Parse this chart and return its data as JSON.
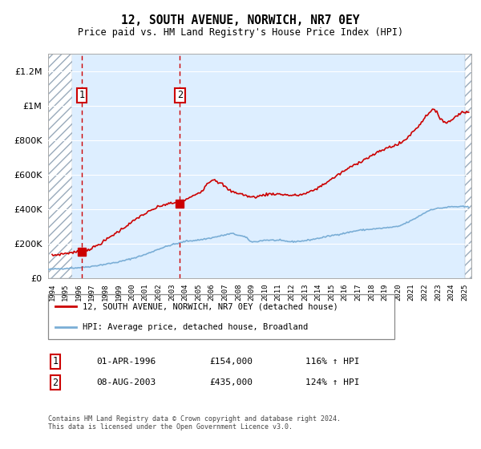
{
  "title": "12, SOUTH AVENUE, NORWICH, NR7 0EY",
  "subtitle": "Price paid vs. HM Land Registry's House Price Index (HPI)",
  "legend_line1": "12, SOUTH AVENUE, NORWICH, NR7 0EY (detached house)",
  "legend_line2": "HPI: Average price, detached house, Broadland",
  "transaction1_date": "01-APR-1996",
  "transaction1_price": "£154,000",
  "transaction1_hpi": "116% ↑ HPI",
  "transaction1_year": 1996.25,
  "transaction1_value": 154000,
  "transaction2_date": "08-AUG-2003",
  "transaction2_price": "£435,000",
  "transaction2_hpi": "124% ↑ HPI",
  "transaction2_year": 2003.6,
  "transaction2_value": 435000,
  "footer": "Contains HM Land Registry data © Crown copyright and database right 2024.\nThis data is licensed under the Open Government Licence v3.0.",
  "red_color": "#cc0000",
  "blue_color": "#7aaed6",
  "bg_color": "#ddeeff",
  "hatch_bg": "#c8d8e8",
  "ylim": [
    0,
    1300000
  ],
  "xlim_start": 1993.7,
  "xlim_end": 2025.5,
  "hatch_end": 1995.5,
  "blue_shade_end": 2004.3
}
